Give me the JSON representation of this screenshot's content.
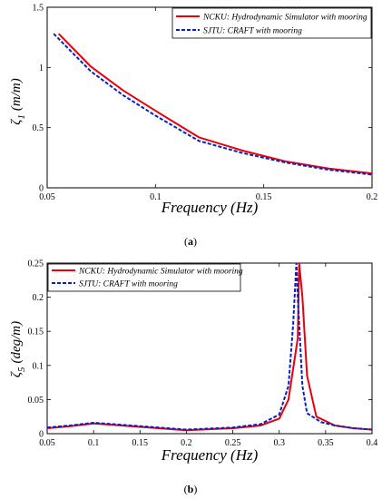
{
  "colors": {
    "ncku": "#e8000b",
    "sjtu": "#0b1fbf"
  },
  "chart_data": [
    {
      "type": "line",
      "caption_letter": "a",
      "xlabel": "Frequency (Hz)",
      "ylabel_sym": "ζ",
      "ylabel_sub": "1",
      "ylabel_unit": "(m/m)",
      "xlim": [
        0.05,
        0.2
      ],
      "ylim": [
        0,
        1.5
      ],
      "xticks": [
        0.05,
        0.1,
        0.15,
        0.2
      ],
      "xtick_labels": [
        "0.05",
        "0.1",
        "0.15",
        "0.2"
      ],
      "yticks": [
        0,
        0.5,
        1,
        1.5
      ],
      "ytick_labels": [
        "0",
        "0.5",
        "1",
        "1.5"
      ],
      "legend": "top-right",
      "series": [
        {
          "name": "NCKU: Hydrodynamic Simulator with mooring",
          "color": "#e8000b",
          "dash": "solid",
          "x": [
            0.0553,
            0.07,
            0.085,
            0.1,
            0.12,
            0.14,
            0.16,
            0.18,
            0.2
          ],
          "y": [
            1.28,
            1.01,
            0.81,
            0.64,
            0.42,
            0.31,
            0.22,
            0.16,
            0.12
          ]
        },
        {
          "name": "SJTU: CRAFT with mooring",
          "color": "#0b1fbf",
          "dash": "dashed",
          "x": [
            0.053,
            0.07,
            0.085,
            0.1,
            0.12,
            0.14,
            0.16,
            0.18,
            0.2
          ],
          "y": [
            1.28,
            0.97,
            0.77,
            0.6,
            0.39,
            0.29,
            0.21,
            0.15,
            0.11
          ]
        }
      ]
    },
    {
      "type": "line",
      "caption_letter": "b",
      "xlabel": "Frequency (Hz)",
      "ylabel_sym": "ζ",
      "ylabel_sub": "5",
      "ylabel_unit": "(deg/m)",
      "xlim": [
        0.05,
        0.4
      ],
      "ylim": [
        0,
        0.25
      ],
      "xticks": [
        0.05,
        0.1,
        0.15,
        0.2,
        0.25,
        0.3,
        0.35,
        0.4
      ],
      "xtick_labels": [
        "0.05",
        "0.1",
        "0.15",
        "0.2",
        "0.25",
        "0.3",
        "0.35",
        "0.4"
      ],
      "yticks": [
        0,
        0.05,
        0.1,
        0.15,
        0.2,
        0.25
      ],
      "ytick_labels": [
        "0",
        "0.05",
        "0.1",
        "0.15",
        "0.2",
        "0.25"
      ],
      "legend": "top-left",
      "series": [
        {
          "name": "NCKU: Hydrodynamic Simulator with mooring",
          "color": "#e8000b",
          "dash": "solid",
          "x": [
            0.05,
            0.075,
            0.1,
            0.15,
            0.2,
            0.25,
            0.28,
            0.3,
            0.31,
            0.32,
            0.3215,
            0.325,
            0.33,
            0.34,
            0.36,
            0.38,
            0.4
          ],
          "y": [
            0.008,
            0.011,
            0.015,
            0.01,
            0.005,
            0.008,
            0.012,
            0.022,
            0.05,
            0.14,
            0.25,
            0.2,
            0.085,
            0.025,
            0.012,
            0.008,
            0.006
          ]
        },
        {
          "name": "SJTU: CRAFT with mooring",
          "color": "#0b1fbf",
          "dash": "dashed",
          "x": [
            0.05,
            0.075,
            0.1,
            0.15,
            0.2,
            0.25,
            0.28,
            0.3,
            0.31,
            0.315,
            0.3185,
            0.32,
            0.325,
            0.33,
            0.345,
            0.36,
            0.38,
            0.4
          ],
          "y": [
            0.009,
            0.012,
            0.016,
            0.011,
            0.006,
            0.009,
            0.014,
            0.028,
            0.07,
            0.16,
            0.25,
            0.2,
            0.07,
            0.03,
            0.017,
            0.012,
            0.008,
            0.006
          ]
        }
      ]
    }
  ]
}
